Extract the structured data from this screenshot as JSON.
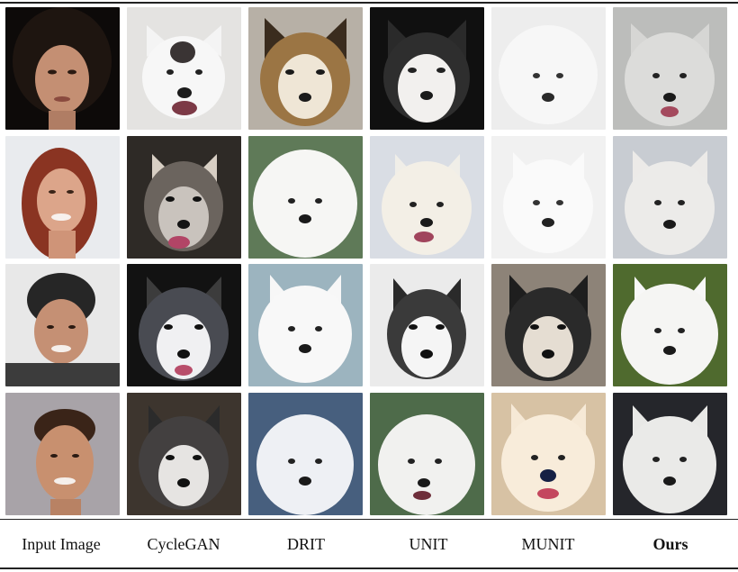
{
  "columns": [
    {
      "label": "Input Image",
      "emphasis": false
    },
    {
      "label": "CycleGAN",
      "emphasis": false
    },
    {
      "label": "DRIT",
      "emphasis": false
    },
    {
      "label": "UNIT",
      "emphasis": false
    },
    {
      "label": "MUNIT",
      "emphasis": false
    },
    {
      "label": "Ours",
      "emphasis": true
    }
  ],
  "rows": [
    {
      "subject": "woman with dark curly hair",
      "outputs": [
        "white husky",
        "husky",
        "husky",
        "white samoyed",
        "samoyed"
      ]
    },
    {
      "subject": "smiling woman with red hair",
      "outputs": [
        "husky",
        "samoyed",
        "samoyed",
        "samoyed",
        "samoyed"
      ]
    },
    {
      "subject": "man in black beanie",
      "outputs": [
        "husky",
        "samoyed",
        "husky",
        "husky",
        "samoyed"
      ]
    },
    {
      "subject": "smiling man",
      "outputs": [
        "husky",
        "samoyed",
        "samoyed",
        "samoyed",
        "samoyed"
      ]
    }
  ],
  "colors": {
    "rule": "#222222",
    "text": "#111111"
  }
}
